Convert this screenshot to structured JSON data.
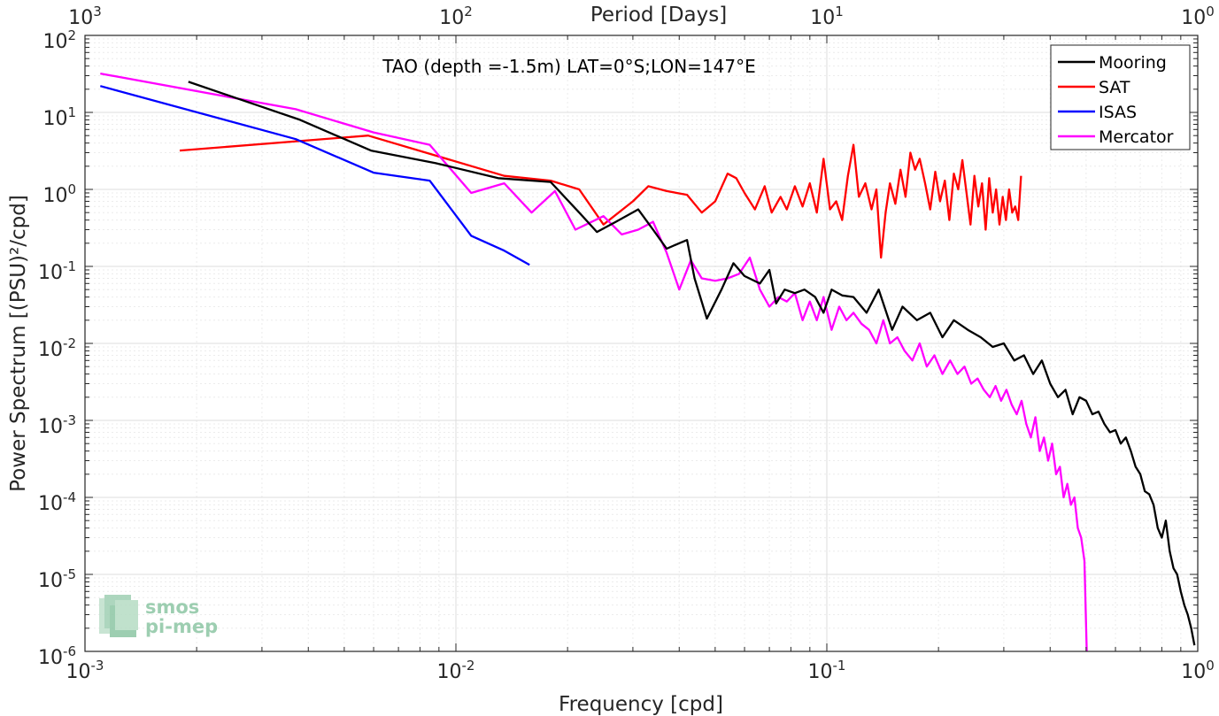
{
  "chart_data": {
    "type": "line",
    "title": "TAO (depth =-1.5m) LAT=0°S;LON=147°E",
    "xlabel": "Frequency [cpd]",
    "ylabel": "Power Spectrum [(PSU)²/cpd]",
    "top_xlabel": "Period [Days]",
    "x_scale": "log",
    "y_scale": "log",
    "xlim": [
      0.001,
      1
    ],
    "ylim": [
      1e-06,
      100
    ],
    "grid": true,
    "legend_position": "top-right",
    "x_ticks": [
      {
        "base": "10",
        "exp": "-3"
      },
      {
        "base": "10",
        "exp": "-2"
      },
      {
        "base": "10",
        "exp": "-1"
      },
      {
        "base": "10",
        "exp": "0"
      }
    ],
    "top_ticks": [
      {
        "base": "10",
        "exp": "3"
      },
      {
        "base": "10",
        "exp": "2"
      },
      {
        "base": "10",
        "exp": "1"
      },
      {
        "base": "10",
        "exp": "0"
      }
    ],
    "y_ticks": [
      {
        "base": "10",
        "exp": "2"
      },
      {
        "base": "10",
        "exp": "1"
      },
      {
        "base": "10",
        "exp": "0"
      },
      {
        "base": "10",
        "exp": "-1"
      },
      {
        "base": "10",
        "exp": "-2"
      },
      {
        "base": "10",
        "exp": "-3"
      },
      {
        "base": "10",
        "exp": "-4"
      },
      {
        "base": "10",
        "exp": "-5"
      },
      {
        "base": "10",
        "exp": "-6"
      }
    ],
    "series": [
      {
        "name": "Mooring",
        "color": "#000000",
        "x": [
          0.0019,
          0.0038,
          0.0059,
          0.0088,
          0.013,
          0.018,
          0.0215,
          0.024,
          0.027,
          0.031,
          0.034,
          0.037,
          0.04,
          0.042,
          0.044,
          0.0475,
          0.052,
          0.056,
          0.06,
          0.066,
          0.07,
          0.073,
          0.077,
          0.082,
          0.087,
          0.093,
          0.098,
          0.103,
          0.11,
          0.118,
          0.128,
          0.138,
          0.15,
          0.16,
          0.175,
          0.19,
          0.205,
          0.22,
          0.24,
          0.26,
          0.28,
          0.3,
          0.32,
          0.34,
          0.36,
          0.38,
          0.4,
          0.42,
          0.44,
          0.46,
          0.48,
          0.5,
          0.52,
          0.54,
          0.56,
          0.58,
          0.6,
          0.62,
          0.64,
          0.66,
          0.68,
          0.7,
          0.72,
          0.74,
          0.76,
          0.78,
          0.8,
          0.82,
          0.84,
          0.86,
          0.88,
          0.9,
          0.92,
          0.94,
          0.96,
          0.98
        ],
        "y": [
          25,
          8,
          3.2,
          2.2,
          1.4,
          1.25,
          0.5,
          0.28,
          0.38,
          0.55,
          0.3,
          0.17,
          0.2,
          0.22,
          0.07,
          0.021,
          0.05,
          0.11,
          0.075,
          0.06,
          0.09,
          0.033,
          0.05,
          0.045,
          0.05,
          0.04,
          0.025,
          0.05,
          0.042,
          0.04,
          0.025,
          0.05,
          0.015,
          0.03,
          0.02,
          0.025,
          0.012,
          0.02,
          0.015,
          0.012,
          0.009,
          0.01,
          0.006,
          0.007,
          0.004,
          0.006,
          0.003,
          0.002,
          0.0025,
          0.0012,
          0.002,
          0.0018,
          0.0012,
          0.0013,
          0.0009,
          0.0007,
          0.00075,
          0.0005,
          0.0006,
          0.0004,
          0.00025,
          0.0002,
          0.00012,
          0.00011,
          8e-05,
          4e-05,
          3e-05,
          5e-05,
          2e-05,
          1.2e-05,
          1e-05,
          6e-06,
          4e-06,
          3e-06,
          2e-06,
          1.2e-06
        ]
      },
      {
        "name": "SAT",
        "color": "#ff0000",
        "x": [
          0.0018,
          0.0058,
          0.0135,
          0.018,
          0.0215,
          0.025,
          0.03,
          0.033,
          0.037,
          0.042,
          0.046,
          0.05,
          0.054,
          0.057,
          0.06,
          0.064,
          0.068,
          0.071,
          0.075,
          0.078,
          0.082,
          0.086,
          0.09,
          0.094,
          0.098,
          0.102,
          0.106,
          0.11,
          0.114,
          0.118,
          0.122,
          0.127,
          0.132,
          0.136,
          0.14,
          0.144,
          0.148,
          0.153,
          0.158,
          0.163,
          0.168,
          0.173,
          0.178,
          0.184,
          0.19,
          0.196,
          0.202,
          0.208,
          0.214,
          0.22,
          0.226,
          0.232,
          0.238,
          0.244,
          0.25,
          0.256,
          0.262,
          0.268,
          0.274,
          0.28,
          0.286,
          0.292,
          0.298,
          0.304,
          0.31,
          0.316,
          0.322,
          0.328,
          0.334
        ],
        "y": [
          3.2,
          5,
          1.5,
          1.3,
          1.0,
          0.35,
          0.7,
          1.1,
          0.95,
          0.85,
          0.5,
          0.7,
          1.6,
          1.4,
          0.9,
          0.55,
          1.1,
          0.5,
          0.8,
          0.55,
          1.1,
          0.6,
          1.2,
          0.5,
          2.5,
          0.55,
          0.7,
          0.4,
          1.5,
          3.8,
          0.8,
          1.2,
          0.55,
          1.0,
          0.13,
          0.5,
          1.2,
          0.65,
          1.8,
          0.8,
          3.0,
          1.8,
          2.5,
          1.2,
          0.55,
          1.7,
          0.7,
          1.3,
          0.4,
          1.6,
          1.0,
          2.4,
          0.9,
          0.35,
          1.5,
          0.6,
          1.2,
          0.3,
          1.4,
          0.5,
          1.0,
          0.35,
          0.8,
          0.4,
          1.0,
          0.5,
          0.6,
          0.4,
          1.5
        ]
      },
      {
        "name": "ISAS",
        "color": "#0000ff",
        "x": [
          0.0011,
          0.0037,
          0.006,
          0.0085,
          0.011,
          0.0135,
          0.0158
        ],
        "y": [
          22,
          4.5,
          1.65,
          1.3,
          0.25,
          0.16,
          0.105
        ]
      },
      {
        "name": "Mercator",
        "color": "#ff00ff",
        "x": [
          0.0011,
          0.0037,
          0.006,
          0.0085,
          0.011,
          0.0135,
          0.016,
          0.0185,
          0.021,
          0.025,
          0.028,
          0.031,
          0.034,
          0.037,
          0.04,
          0.043,
          0.046,
          0.05,
          0.054,
          0.058,
          0.062,
          0.066,
          0.07,
          0.074,
          0.078,
          0.082,
          0.086,
          0.09,
          0.094,
          0.098,
          0.103,
          0.108,
          0.113,
          0.118,
          0.124,
          0.13,
          0.136,
          0.142,
          0.148,
          0.155,
          0.162,
          0.17,
          0.178,
          0.186,
          0.195,
          0.205,
          0.215,
          0.225,
          0.235,
          0.245,
          0.255,
          0.265,
          0.275,
          0.285,
          0.295,
          0.305,
          0.315,
          0.325,
          0.335,
          0.345,
          0.355,
          0.365,
          0.375,
          0.385,
          0.395,
          0.405,
          0.415,
          0.425,
          0.435,
          0.445,
          0.455,
          0.465,
          0.475,
          0.485,
          0.495,
          0.502
        ],
        "y": [
          32,
          11,
          5.5,
          3.8,
          0.9,
          1.2,
          0.5,
          0.95,
          0.3,
          0.45,
          0.26,
          0.3,
          0.38,
          0.15,
          0.05,
          0.12,
          0.07,
          0.065,
          0.07,
          0.08,
          0.13,
          0.05,
          0.03,
          0.04,
          0.035,
          0.045,
          0.02,
          0.035,
          0.02,
          0.04,
          0.015,
          0.03,
          0.02,
          0.025,
          0.018,
          0.015,
          0.01,
          0.02,
          0.01,
          0.012,
          0.008,
          0.006,
          0.01,
          0.005,
          0.007,
          0.004,
          0.006,
          0.004,
          0.005,
          0.003,
          0.0035,
          0.0025,
          0.002,
          0.0028,
          0.0018,
          0.0025,
          0.0016,
          0.0012,
          0.0018,
          0.0009,
          0.0006,
          0.0011,
          0.0004,
          0.0006,
          0.0003,
          0.0005,
          0.0002,
          0.00025,
          0.0001,
          0.00015,
          8e-05,
          0.0001,
          4e-05,
          3e-05,
          1.5e-05,
          1e-06
        ]
      }
    ]
  },
  "logo": {
    "line1": "smos",
    "line2": "pi-mep"
  }
}
